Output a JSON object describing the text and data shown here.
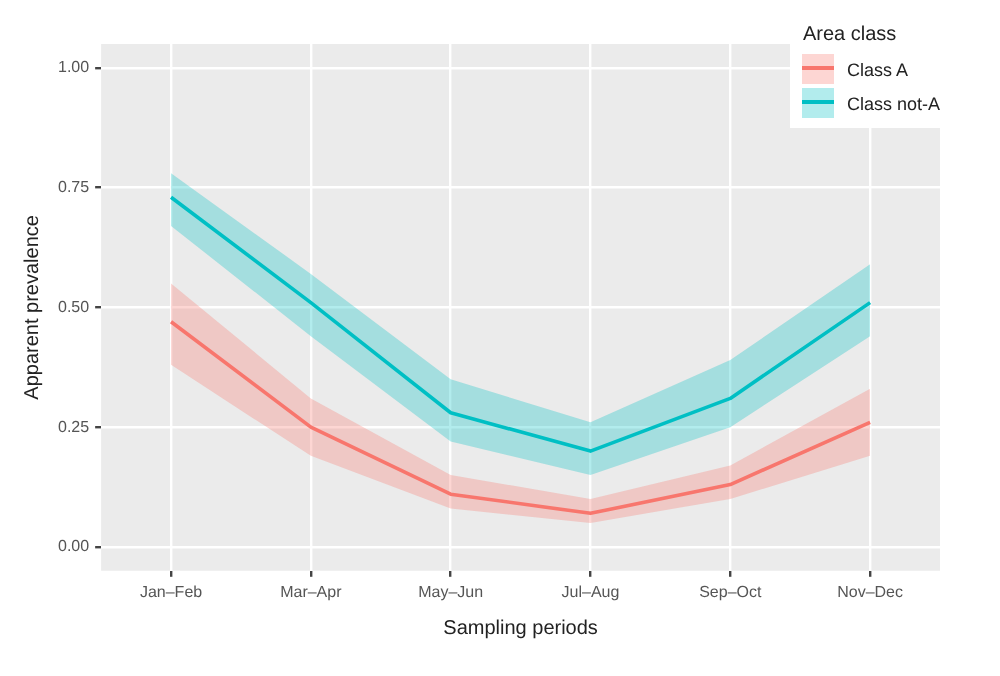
{
  "chart_data": {
    "type": "line",
    "xlabel": "Sampling periods",
    "ylabel": "Apparent prevalence",
    "legend_title": "Area class",
    "categories": [
      "Jan–Feb",
      "Mar–Apr",
      "May–Jun",
      "Jul–Aug",
      "Sep–Oct",
      "Nov–Dec"
    ],
    "series": [
      {
        "name": "Class A",
        "color": "#f8766d",
        "values": [
          0.47,
          0.25,
          0.11,
          0.07,
          0.13,
          0.26
        ],
        "lower": [
          0.38,
          0.19,
          0.08,
          0.05,
          0.1,
          0.19
        ],
        "upper": [
          0.55,
          0.31,
          0.15,
          0.1,
          0.17,
          0.33
        ]
      },
      {
        "name": "Class not-A",
        "color": "#00bfc4",
        "values": [
          0.73,
          0.51,
          0.28,
          0.2,
          0.31,
          0.51
        ],
        "lower": [
          0.67,
          0.44,
          0.22,
          0.15,
          0.25,
          0.44
        ],
        "upper": [
          0.78,
          0.57,
          0.35,
          0.26,
          0.39,
          0.59
        ]
      }
    ],
    "ylim": [
      -0.05,
      1.05
    ],
    "yticks": [
      {
        "value": 0,
        "label": "0.00"
      },
      {
        "value": 0.25,
        "label": "0.25"
      },
      {
        "value": 0.5,
        "label": "0.50"
      },
      {
        "value": 0.75,
        "label": "0.75"
      },
      {
        "value": 1,
        "label": "1.00"
      }
    ],
    "grid": true,
    "legend": "top right",
    "marker": "none",
    "line_style": "solid"
  }
}
